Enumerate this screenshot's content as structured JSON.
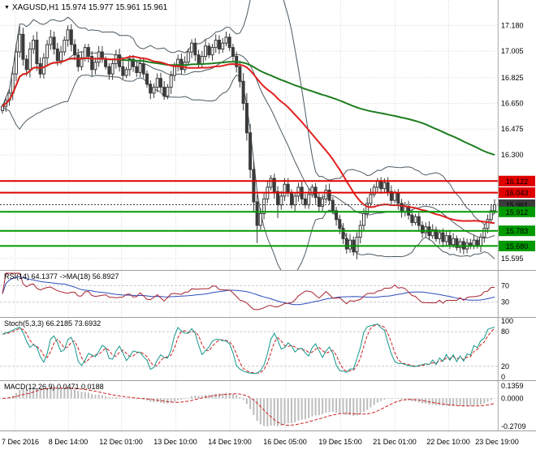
{
  "icons": {
    "symbol_marker": "▼"
  },
  "palette": {
    "background": "#ffffff",
    "grid": "#d8d8d8",
    "candle": "#3a3a3a",
    "panel_border": "#9e9e9e",
    "resistance_red": "#e00000",
    "support_green": "#009900",
    "current_price_tag": "#3c3c3c"
  },
  "chart_data": [
    {
      "type": "candlestick",
      "symbol": "XAGUSD",
      "timeframe": "H1",
      "title": "XAGUSD,H1 15.974 15.977 15.961 15.961",
      "ohlc_current": {
        "open": 15.974,
        "high": 15.977,
        "low": 15.961,
        "close": 15.961
      },
      "y_axis": {
        "min": 15.55,
        "max": 17.32,
        "ticks": [
          "17.180",
          "17.005",
          "16.825",
          "16.650",
          "16.475",
          "16.300",
          "15.595"
        ]
      },
      "x_axis": {
        "labels": [
          "7 Dec 2016",
          "8 Dec 14:00",
          "12 Dec 01:00",
          "13 Dec 10:00",
          "14 Dec 19:00",
          "16 Dec 05:00",
          "19 Dec 15:00",
          "21 Dec 01:00",
          "22 Dec 10:00",
          "23 Dec 19:00"
        ],
        "positions": [
          0.03,
          0.137,
          0.243,
          0.353,
          0.462,
          0.572,
          0.683,
          0.793,
          0.9,
          0.998
        ]
      },
      "closes": [
        16.63,
        16.67,
        16.72,
        16.85,
        17.0,
        17.12,
        16.95,
        16.88,
        17.02,
        17.08,
        16.92,
        16.85,
        16.96,
        17.05,
        17.1,
        17.02,
        16.94,
        17.0,
        17.08,
        17.15,
        17.05,
        16.98,
        16.9,
        16.96,
        17.03,
        16.97,
        16.88,
        16.93,
        17.0,
        16.95,
        16.9,
        16.85,
        16.92,
        16.98,
        16.9,
        16.84,
        16.88,
        16.95,
        16.9,
        16.86,
        16.92,
        16.85,
        16.78,
        16.72,
        16.76,
        16.82,
        16.76,
        16.7,
        16.76,
        16.84,
        16.9,
        16.95,
        16.88,
        16.93,
        17.0,
        17.06,
        16.98,
        16.92,
        16.97,
        17.04,
        16.98,
        17.03,
        17.08,
        17.02,
        17.06,
        17.1,
        17.03,
        16.97,
        16.9,
        16.8,
        16.65,
        16.45,
        16.2,
        15.98,
        15.82,
        15.9,
        16.0,
        16.08,
        16.14,
        16.05,
        15.96,
        16.02,
        16.1,
        16.04,
        15.96,
        16.02,
        16.08,
        16.0,
        15.96,
        16.03,
        16.08,
        16.01,
        15.95,
        16.0,
        16.06,
        15.99,
        15.92,
        15.86,
        15.8,
        15.73,
        15.66,
        15.72,
        15.64,
        15.74,
        15.82,
        15.9,
        15.97,
        16.03,
        16.08,
        16.12,
        16.07,
        16.11,
        16.05,
        15.99,
        16.04,
        15.97,
        15.91,
        15.95,
        15.89,
        15.84,
        15.88,
        15.82,
        15.77,
        15.81,
        15.75,
        15.79,
        15.73,
        15.77,
        15.71,
        15.75,
        15.69,
        15.73,
        15.67,
        15.71,
        15.66,
        15.7,
        15.68,
        15.72,
        15.68,
        15.74,
        15.8,
        15.86,
        15.92,
        15.96
      ],
      "high_overrides": {
        "5": 17.17,
        "14": 17.15,
        "19": 17.18,
        "62": 17.12,
        "65": 17.13
      },
      "low_overrides": {
        "0": 16.58,
        "74": 15.7,
        "80": 15.87
      },
      "overlays": {
        "bollinger": {
          "period": 20,
          "deviation": 2,
          "color": "#4d5a63"
        },
        "ma_fast": {
          "period": 35,
          "color": "#e02020"
        },
        "ma_slow": {
          "period": 120,
          "color": "#1e7d1e"
        }
      },
      "hlines": [
        {
          "price": 16.122,
          "color": "#e00000",
          "tag": "16.122",
          "current": false
        },
        {
          "price": 16.043,
          "color": "#e00000",
          "tag": "16.043",
          "current": false
        },
        {
          "price": 15.961,
          "color": "#3c3c3c",
          "tag": "15.961",
          "current": true
        },
        {
          "price": 15.912,
          "color": "#009900",
          "tag": "15.912",
          "current": false
        },
        {
          "price": 15.783,
          "color": "#009900",
          "tag": "15.783",
          "current": false
        },
        {
          "price": 15.68,
          "color": "#009900",
          "tag": "15.680",
          "current": false
        }
      ]
    },
    {
      "type": "line",
      "indicator": "RSI",
      "title": "RSI(14) 64.1377 ->MA(18) 56.8927",
      "period": 14,
      "ma_period": 18,
      "value": 64.1377,
      "ma_value": 56.8927,
      "levels": [
        70,
        30
      ],
      "range": [
        0,
        100
      ],
      "color_rsi": "#a8232f",
      "color_ma": "#2b4bbd"
    },
    {
      "type": "line",
      "indicator": "Stochastic",
      "title": "Stoch(5,3,3) 66.2185 73.6932",
      "k_period": 5,
      "d_period": 3,
      "slowing": 3,
      "value_k": 66.2185,
      "value_d": 73.6932,
      "levels": [
        80,
        20
      ],
      "axis_ticks": [
        "100",
        "80",
        "20",
        "0"
      ],
      "range": [
        0,
        100
      ],
      "color_k": "#12978a",
      "color_d": "#cc2222"
    },
    {
      "type": "macd_histogram",
      "indicator": "MACD",
      "title": "MACD(12,26,9) 0.0471 0.0188",
      "fast": 12,
      "slow": 26,
      "signal": 9,
      "value_macd": 0.0471,
      "value_signal": 0.0188,
      "axis_ticks": [
        "0.1359",
        "0.0000",
        "-0.2709"
      ],
      "range": [
        -0.2709,
        0.1359
      ],
      "color_hist": "#bdbdbd",
      "color_signal": "#cc2222"
    }
  ]
}
